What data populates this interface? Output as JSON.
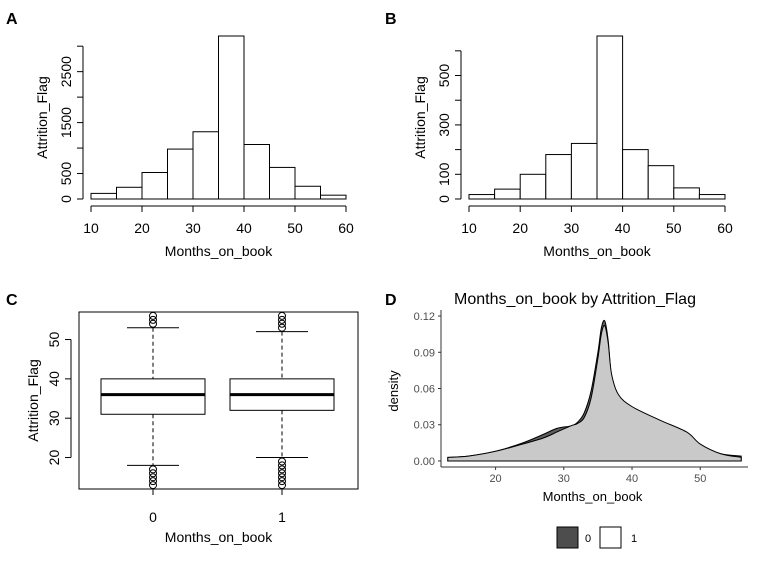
{
  "panel_labels": [
    "A",
    "B",
    "C",
    "D"
  ],
  "chart_data": [
    {
      "panel": "A",
      "type": "bar",
      "xlabel": "Months_on_book",
      "ylabel": "Attrition_Flag",
      "bin_edges": [
        10,
        15,
        20,
        25,
        30,
        35,
        40,
        45,
        50,
        55,
        60
      ],
      "values": [
        110,
        230,
        520,
        980,
        1320,
        3200,
        1070,
        620,
        250,
        75
      ],
      "xlim": [
        10,
        60
      ],
      "ylim": [
        0,
        3200
      ],
      "xticks": [
        "10",
        "20",
        "30",
        "40",
        "50",
        "60"
      ],
      "xtick_values": [
        10,
        20,
        30,
        40,
        50,
        60
      ],
      "yticks": [
        "0",
        "500",
        "1500",
        "2500"
      ],
      "ytick_values": [
        0,
        500,
        1500,
        2500
      ],
      "yminor": [
        1000,
        2000,
        3000
      ]
    },
    {
      "panel": "B",
      "type": "bar",
      "xlabel": "Months_on_book",
      "ylabel": "Attrition_Flag",
      "bin_edges": [
        10,
        15,
        20,
        25,
        30,
        35,
        40,
        45,
        50,
        55,
        60
      ],
      "values": [
        18,
        40,
        100,
        180,
        225,
        660,
        200,
        135,
        45,
        18
      ],
      "xlim": [
        10,
        60
      ],
      "ylim": [
        0,
        660
      ],
      "xticks": [
        "10",
        "20",
        "30",
        "40",
        "50",
        "60"
      ],
      "xtick_values": [
        10,
        20,
        30,
        40,
        50,
        60
      ],
      "yticks": [
        "0",
        "100",
        "300",
        "500"
      ],
      "ytick_values": [
        0,
        100,
        300,
        500
      ],
      "yminor": [
        200,
        400,
        600
      ]
    },
    {
      "panel": "C",
      "type": "boxplot",
      "xlabel": "Months_on_book",
      "ylabel": "Attrition_Flag",
      "categories": [
        "0",
        "1"
      ],
      "boxes": [
        {
          "min": 18,
          "q1": 31,
          "median": 36,
          "q3": 40,
          "max": 53,
          "outliers": [
            54,
            55,
            56,
            13,
            14,
            15,
            16,
            17
          ]
        },
        {
          "min": 20,
          "q1": 32,
          "median": 36,
          "q3": 40,
          "max": 52,
          "outliers": [
            53,
            54,
            55,
            56,
            13,
            14,
            15,
            16,
            17,
            18,
            19
          ]
        }
      ],
      "ylim": [
        12,
        57
      ],
      "yticks": [
        "20",
        "30",
        "40",
        "50"
      ],
      "ytick_values": [
        20,
        30,
        40,
        50
      ]
    },
    {
      "panel": "D",
      "type": "area",
      "title": "Months_on_book  by  Attrition_Flag",
      "xlabel": "Months_on_book",
      "ylabel": "density",
      "xlim": [
        12,
        57
      ],
      "ylim": [
        -0.005,
        0.125
      ],
      "xticks": [
        "20",
        "30",
        "40",
        "50"
      ],
      "xtick_values": [
        20,
        30,
        40,
        50
      ],
      "yticks": [
        "0.00",
        "0.03",
        "0.06",
        "0.09",
        "0.12"
      ],
      "ytick_values": [
        0,
        0.03,
        0.06,
        0.09,
        0.12
      ],
      "legend": [
        "0",
        "1"
      ],
      "legend_colors": [
        "#4d4d4d",
        "#ffffff"
      ],
      "series": [
        {
          "name": "0",
          "color": "#4d4d4d",
          "x": [
            13,
            16,
            20,
            24,
            27,
            29,
            31,
            32,
            33,
            34,
            35,
            35.5,
            36,
            36.5,
            37,
            38,
            40,
            44,
            48,
            50,
            53,
            56
          ],
          "y": [
            0.003,
            0.004,
            0.008,
            0.015,
            0.022,
            0.027,
            0.029,
            0.032,
            0.04,
            0.058,
            0.09,
            0.11,
            0.116,
            0.1,
            0.07,
            0.052,
            0.042,
            0.032,
            0.02,
            0.012,
            0.006,
            0.004
          ]
        },
        {
          "name": "1",
          "color": "#ffffff",
          "x": [
            13,
            16,
            20,
            24,
            27,
            29,
            31,
            32,
            33,
            34,
            35,
            35.5,
            36,
            36.5,
            37,
            38,
            40,
            44,
            48,
            50,
            53,
            56
          ],
          "y": [
            0.003,
            0.004,
            0.008,
            0.014,
            0.019,
            0.024,
            0.029,
            0.031,
            0.036,
            0.052,
            0.085,
            0.105,
            0.112,
            0.098,
            0.072,
            0.055,
            0.045,
            0.034,
            0.024,
            0.014,
            0.006,
            0.003
          ]
        }
      ]
    }
  ]
}
